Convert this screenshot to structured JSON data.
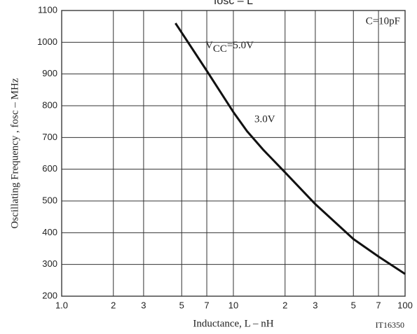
{
  "chart_data": {
    "type": "line",
    "title": "fosc – L",
    "x_label": "Inductance, L  –  nH",
    "y_label": "Oscillating Frequency , fosc  –  MHz",
    "x_scale": "log",
    "grid": true,
    "xlim": [
      1,
      100
    ],
    "xticks": [
      {
        "value": 1,
        "label": "1.0"
      },
      2,
      3,
      5,
      7,
      10,
      {
        "value": 20,
        "label": "2"
      },
      {
        "value": 30,
        "label": "3"
      },
      {
        "value": 50,
        "label": "5"
      },
      {
        "value": 70,
        "label": "7"
      },
      100
    ],
    "ylim": [
      200,
      1100
    ],
    "yticks": [
      200,
      300,
      400,
      500,
      600,
      700,
      800,
      900,
      1000,
      1100
    ],
    "x": [
      4.6,
      7,
      10,
      12,
      15,
      20,
      30,
      50,
      70,
      100
    ],
    "series": [
      {
        "color": "#111111",
        "values": [
          1060,
          910,
          780,
          720,
          660,
          590,
          490,
          380,
          325,
          270
        ]
      }
    ],
    "annotations": {
      "condition": "C=10pF",
      "vcc_main": "V",
      "vcc_sub": "CC",
      "vcc_rest": "=5.0V",
      "v3": "3.0V",
      "code": "IT16350"
    }
  }
}
